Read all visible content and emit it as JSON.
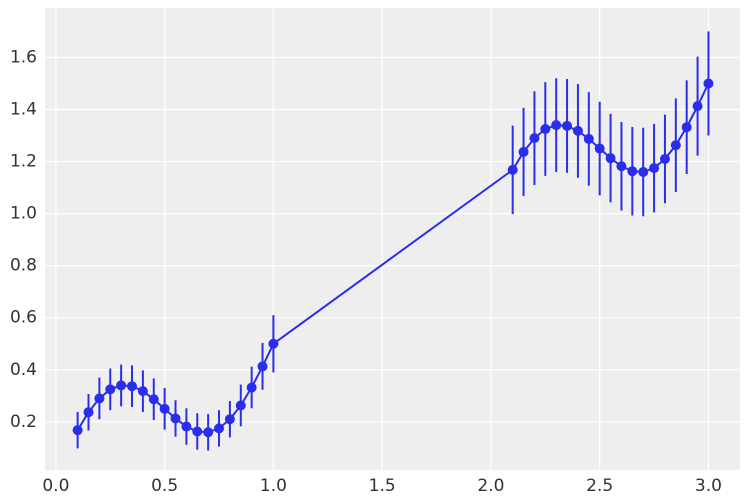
{
  "chart_data": {
    "type": "errorbar",
    "x": [
      0.1,
      0.15,
      0.2,
      0.25,
      0.3,
      0.35,
      0.4,
      0.45,
      0.5,
      0.55,
      0.6,
      0.65,
      0.7,
      0.75,
      0.8,
      0.85,
      0.9,
      0.95,
      1.0,
      2.1,
      2.15,
      2.2,
      2.25,
      2.3,
      2.35,
      2.4,
      2.45,
      2.5,
      2.55,
      2.6,
      2.65,
      2.7,
      2.75,
      2.8,
      2.85,
      2.9,
      2.95,
      3.0
    ],
    "series": [
      {
        "color": "#2a2eec",
        "values": [
          0.168,
          0.237,
          0.29,
          0.325,
          0.34,
          0.337,
          0.318,
          0.287,
          0.25,
          0.213,
          0.182,
          0.163,
          0.16,
          0.175,
          0.21,
          0.263,
          0.332,
          0.413,
          0.5,
          1.168,
          1.237,
          1.29,
          1.325,
          1.34,
          1.337,
          1.318,
          1.287,
          1.25,
          1.213,
          1.182,
          1.163,
          1.16,
          1.175,
          1.21,
          1.263,
          1.332,
          1.413,
          1.5
        ],
        "errors": [
          0.07,
          0.07,
          0.08,
          0.08,
          0.08,
          0.08,
          0.08,
          0.08,
          0.08,
          0.07,
          0.07,
          0.07,
          0.07,
          0.07,
          0.07,
          0.08,
          0.08,
          0.09,
          0.11,
          0.17,
          0.17,
          0.18,
          0.18,
          0.18,
          0.18,
          0.18,
          0.18,
          0.18,
          0.17,
          0.17,
          0.17,
          0.17,
          0.17,
          0.17,
          0.18,
          0.18,
          0.19,
          0.2
        ]
      }
    ],
    "xlim": [
      -0.05,
      3.145
    ],
    "ylim": [
      0.015,
      1.79
    ],
    "xticks": [
      {
        "value": 0,
        "label": "0.0"
      },
      0.5,
      {
        "value": 1,
        "label": "1.0"
      },
      1.5,
      {
        "value": 2,
        "label": "2.0"
      },
      2.5,
      {
        "value": 3,
        "label": "3.0"
      }
    ],
    "yticks": [
      0.2,
      0.4,
      0.6,
      0.8,
      {
        "value": 1,
        "label": "1.0"
      },
      1.2,
      1.4,
      1.6
    ],
    "grid": true
  }
}
